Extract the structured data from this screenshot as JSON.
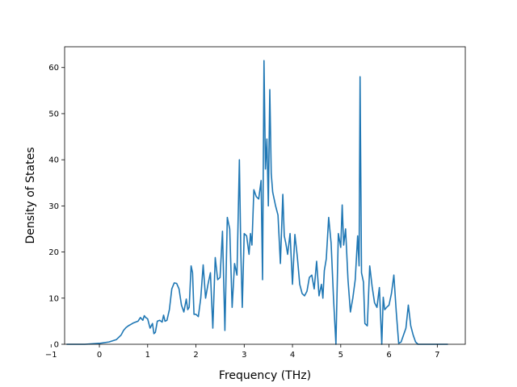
{
  "chart_data": {
    "type": "line",
    "title": "",
    "xlabel": "Frequency (THz)",
    "ylabel": "Density of States",
    "xlim": [
      -0.72,
      7.58
    ],
    "ylim": [
      0,
      64.5
    ],
    "xticks": [
      -1,
      0,
      1,
      2,
      3,
      4,
      5,
      6,
      7
    ],
    "yticks": [
      0,
      10,
      20,
      30,
      40,
      50,
      60
    ],
    "xtick_labels": [
      "−1",
      "0",
      "1",
      "2",
      "3",
      "4",
      "5",
      "6",
      "7"
    ],
    "ytick_labels": [
      "0",
      "10",
      "20",
      "30",
      "40",
      "50",
      "60"
    ],
    "grid": false,
    "line_color": "#1f77b4",
    "series": [
      {
        "x": [
          -0.68,
          -0.3,
          0.0,
          0.2,
          0.35,
          0.45,
          0.5,
          0.55,
          0.6,
          0.65,
          0.7,
          0.8,
          0.85,
          0.9,
          0.93,
          0.96,
          1.0,
          1.05,
          1.1,
          1.13,
          1.16,
          1.2,
          1.25,
          1.3,
          1.33,
          1.36,
          1.4,
          1.45,
          1.5,
          1.55,
          1.6,
          1.65,
          1.7,
          1.75,
          1.8,
          1.83,
          1.86,
          1.9,
          1.93,
          1.96,
          2.0,
          2.05,
          2.1,
          2.15,
          2.2,
          2.25,
          2.3,
          2.35,
          2.4,
          2.45,
          2.5,
          2.55,
          2.6,
          2.65,
          2.7,
          2.75,
          2.8,
          2.85,
          2.9,
          2.93,
          2.96,
          3.0,
          3.05,
          3.1,
          3.13,
          3.16,
          3.2,
          3.25,
          3.3,
          3.35,
          3.38,
          3.41,
          3.44,
          3.47,
          3.5,
          3.53,
          3.56,
          3.59,
          3.62,
          3.65,
          3.7,
          3.75,
          3.8,
          3.83,
          3.86,
          3.9,
          3.95,
          4.0,
          4.05,
          4.1,
          4.15,
          4.2,
          4.25,
          4.3,
          4.35,
          4.4,
          4.45,
          4.5,
          4.55,
          4.6,
          4.63,
          4.66,
          4.7,
          4.75,
          4.8,
          4.85,
          4.9,
          4.95,
          5.0,
          5.03,
          5.06,
          5.1,
          5.15,
          5.2,
          5.25,
          5.3,
          5.35,
          5.38,
          5.4,
          5.43,
          5.47,
          5.5,
          5.55,
          5.6,
          5.65,
          5.7,
          5.75,
          5.8,
          5.85,
          5.88,
          5.91,
          5.95,
          6.0,
          6.05,
          6.1,
          6.15,
          6.2,
          6.25,
          6.3,
          6.35,
          6.4,
          6.45,
          6.5,
          6.55,
          6.6,
          6.7,
          6.9,
          7.1,
          7.22
        ],
        "y": [
          0,
          0,
          0.2,
          0.5,
          1.0,
          2.0,
          3.0,
          3.6,
          4.0,
          4.3,
          4.6,
          5.0,
          5.8,
          5.2,
          6.2,
          5.8,
          5.5,
          3.5,
          4.5,
          2.3,
          2.6,
          5.0,
          5.2,
          4.8,
          6.3,
          5.0,
          5.2,
          7.5,
          12.0,
          13.3,
          13.2,
          12.0,
          8.5,
          7.0,
          9.8,
          7.5,
          8.0,
          17.0,
          15.5,
          6.5,
          6.5,
          6.0,
          10.0,
          17.2,
          10.0,
          13.0,
          15.5,
          3.5,
          18.8,
          14.0,
          14.5,
          24.5,
          3.0,
          27.5,
          25.0,
          8.0,
          17.5,
          15.0,
          40.0,
          20.0,
          8.0,
          24.0,
          23.5,
          19.5,
          24.0,
          21.5,
          33.5,
          32.0,
          31.5,
          35.5,
          14.0,
          61.5,
          38.0,
          44.5,
          30.0,
          55.2,
          37.0,
          33.0,
          31.5,
          30.0,
          28.0,
          17.5,
          32.5,
          23.5,
          22.0,
          19.5,
          24.0,
          13.0,
          23.8,
          19.0,
          13.0,
          11.0,
          10.5,
          11.5,
          14.5,
          15.0,
          12.0,
          18.0,
          10.5,
          13.0,
          10.0,
          16.0,
          18.5,
          27.5,
          22.0,
          10.0,
          0.0,
          24.0,
          21.0,
          30.2,
          21.5,
          25.0,
          14.0,
          7.0,
          10.0,
          14.0,
          23.5,
          17.0,
          58.0,
          15.5,
          13.5,
          4.5,
          4.0,
          17.0,
          12.5,
          9.0,
          8.0,
          12.3,
          0.0,
          10.2,
          7.5,
          8.0,
          8.5,
          11.0,
          15.0,
          7.0,
          0.2,
          0.5,
          2.0,
          3.5,
          8.5,
          4.0,
          2.0,
          0.5,
          0.0,
          0.0,
          0.0,
          0.0,
          0.0
        ]
      }
    ]
  }
}
